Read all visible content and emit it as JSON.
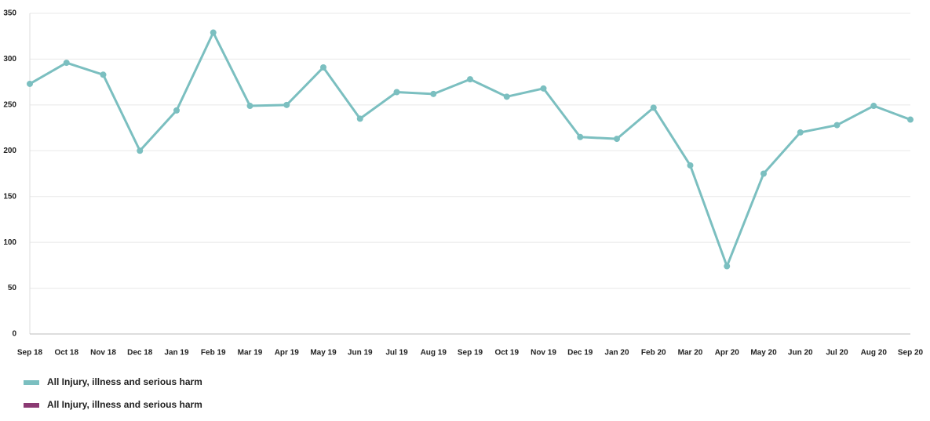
{
  "chart_data": {
    "type": "line",
    "categories": [
      "Sep 18",
      "Oct 18",
      "Nov 18",
      "Dec 18",
      "Jan 19",
      "Feb 19",
      "Mar 19",
      "Apr 19",
      "May 19",
      "Jun 19",
      "Jul 19",
      "Aug 19",
      "Sep 19",
      "Oct 19",
      "Nov 19",
      "Dec 19",
      "Jan 20",
      "Feb 20",
      "Mar 20",
      "Apr 20",
      "May 20",
      "Jun 20",
      "Jul 20",
      "Aug 20",
      "Sep 20"
    ],
    "series": [
      {
        "name": "All Injury, illness and serious harm",
        "color": "#7bbfc0",
        "values": [
          273,
          296,
          283,
          200,
          244,
          329,
          249,
          250,
          291,
          235,
          264,
          262,
          278,
          259,
          268,
          215,
          213,
          247,
          184,
          74,
          175,
          220,
          228,
          249,
          234
        ]
      },
      {
        "name": "All Injury, illness and serious harm",
        "color": "#8b3a73",
        "values": [
          null,
          null,
          null,
          null,
          null,
          null,
          null,
          null,
          null,
          null,
          null,
          null,
          null,
          null,
          null,
          null,
          null,
          null,
          null,
          null,
          null,
          null,
          null,
          null,
          null
        ]
      }
    ],
    "ylim": [
      0,
      350
    ],
    "yticks": [
      0,
      50,
      100,
      150,
      200,
      250,
      300,
      350
    ],
    "grid": true
  }
}
